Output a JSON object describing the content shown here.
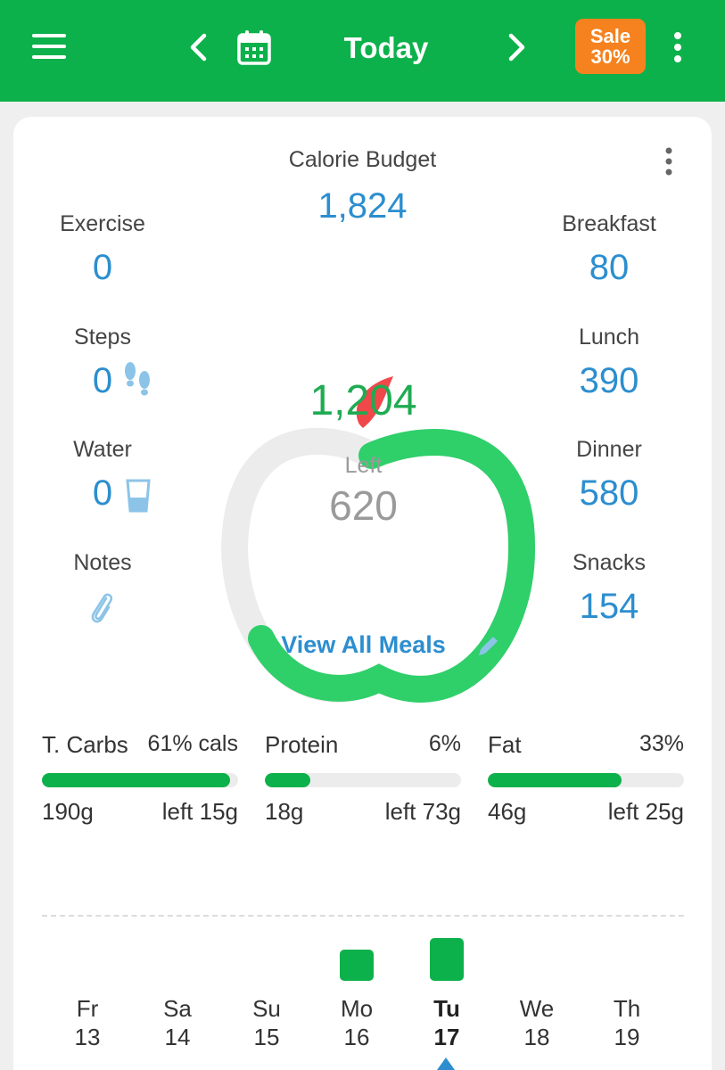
{
  "header": {
    "title": "Today",
    "sale_line1": "Sale",
    "sale_line2": "30%",
    "icons": [
      "hamburger-menu-icon",
      "chevron-left-icon",
      "calendar-icon",
      "chevron-right-icon",
      "more-vertical-icon"
    ],
    "color": "#0db14b"
  },
  "summary": {
    "budget_label": "Calorie Budget",
    "budget_value": "1,824",
    "eaten_value": "1,204",
    "left_label": "Left",
    "left_value": "620",
    "view_meals_label": "View All Meals"
  },
  "left_stats": [
    {
      "label": "Exercise",
      "value": "0"
    },
    {
      "label": "Steps",
      "value": "0",
      "icon": "footsteps-icon"
    },
    {
      "label": "Water",
      "value": "0",
      "icon": "water-glass-icon"
    },
    {
      "label": "Notes",
      "icon": "paperclip-icon"
    }
  ],
  "right_stats": [
    {
      "label": "Breakfast",
      "value": "80"
    },
    {
      "label": "Lunch",
      "value": "390"
    },
    {
      "label": "Dinner",
      "value": "580"
    },
    {
      "label": "Snacks",
      "value": "154"
    }
  ],
  "macros": [
    {
      "name": "T. Carbs",
      "pct": "61% cals",
      "used": "190g",
      "left": "left 15g",
      "fill": 0.96
    },
    {
      "name": "Protein",
      "pct": "6%",
      "used": "18g",
      "left": "left 73g",
      "fill": 0.23
    },
    {
      "name": "Fat",
      "pct": "33%",
      "used": "46g",
      "left": "left 25g",
      "fill": 0.68
    }
  ],
  "week": [
    {
      "name": "Fr",
      "num": "13",
      "bar": 0
    },
    {
      "name": "Sa",
      "num": "14",
      "bar": 0
    },
    {
      "name": "Su",
      "num": "15",
      "bar": 0
    },
    {
      "name": "Mo",
      "num": "16",
      "bar": 0.73
    },
    {
      "name": "Tu",
      "num": "17",
      "bar": 1.0,
      "selected": true
    },
    {
      "name": "We",
      "num": "18",
      "bar": 0
    },
    {
      "name": "Th",
      "num": "19",
      "bar": 0
    }
  ],
  "colors": {
    "accent": "#0db14b",
    "sale": "#f5821f",
    "value_blue": "#2c8ecf",
    "apple_green": "#2fcf6a",
    "stem_red": "#f0484a"
  }
}
